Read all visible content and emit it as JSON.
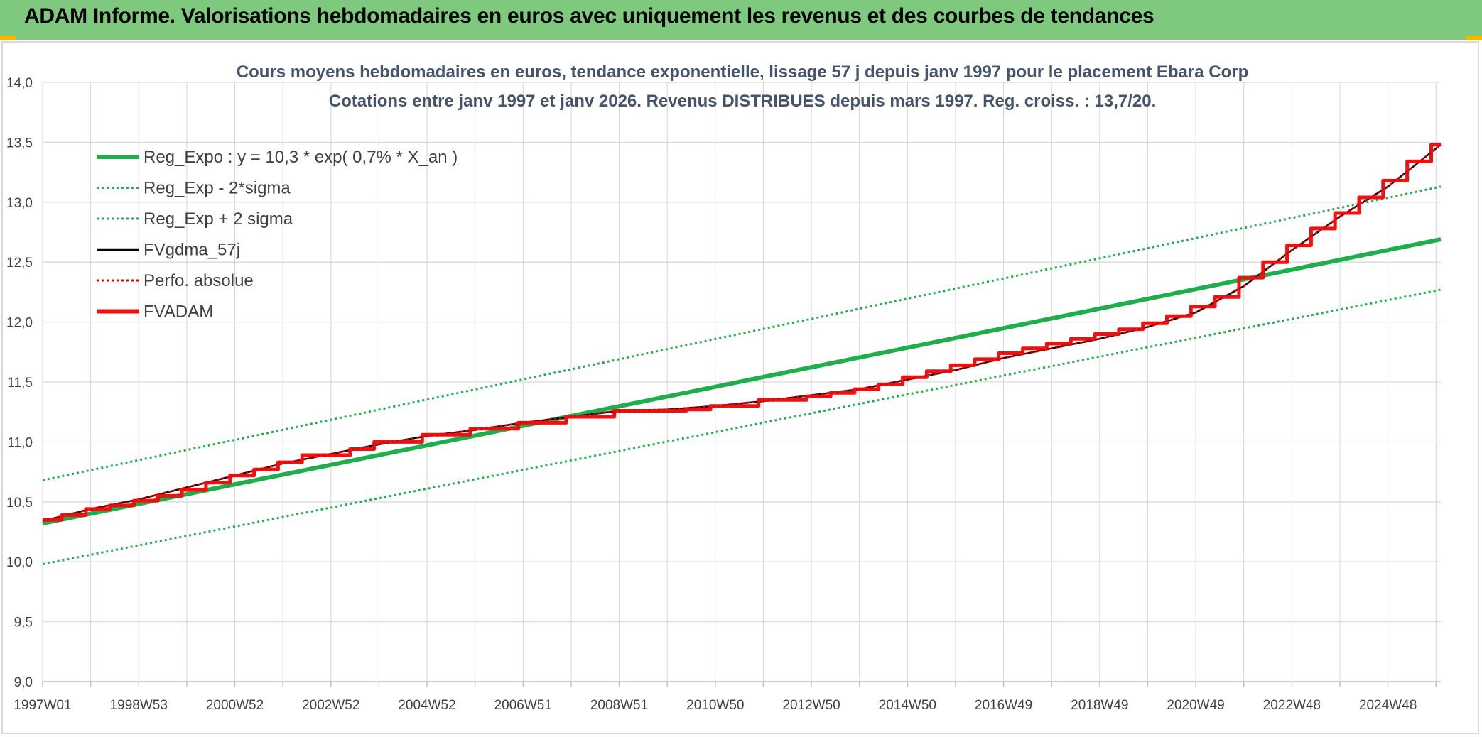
{
  "banner": {
    "title": "ADAM Informe. Valorisations hebdomadaires en euros avec uniquement les revenus et des courbes de tendances"
  },
  "colors": {
    "banner_bg": "#7fc97f",
    "banner_accent": "#f2b705",
    "reg_expo": "#1fae4b",
    "fvgdma": "#000000",
    "perfo": "#e00000",
    "fvadam": "#ee1111",
    "grid": "#d9d9d9",
    "title_text": "#44546a"
  },
  "chart_data": {
    "type": "line",
    "title": "Cours moyens hebdomadaires en euros, tendance exponentielle, lissage 57 j depuis janv 1997 pour le placement Ebara Corp",
    "subtitle": "Cotations entre janv 1997 et janv 2026. Revenus DISTRIBUES depuis mars 1997. Reg. croiss. : 13,7/20.",
    "xlabel": "",
    "ylabel": "",
    "ylim": [
      9.0,
      14.0
    ],
    "xlim": [
      1997.0,
      2026.1
    ],
    "grid": true,
    "legend_position": "top-left",
    "y_ticks": [
      "9,0",
      "9,5",
      "10,0",
      "10,5",
      "11,0",
      "11,5",
      "12,0",
      "12,5",
      "13,0",
      "13,5",
      "14,0"
    ],
    "y_tick_values": [
      9.0,
      9.5,
      10.0,
      10.5,
      11.0,
      11.5,
      12.0,
      12.5,
      13.0,
      13.5,
      14.0
    ],
    "x_tick_labels": [
      "1997W01",
      "1998W53",
      "2000W52",
      "2002W52",
      "2004W52",
      "2006W51",
      "2008W51",
      "2010W50",
      "2012W50",
      "2014W50",
      "2016W49",
      "2018W49",
      "2020W49",
      "2022W48",
      "2024W48"
    ],
    "x_tick_values": [
      1997.0,
      1999.0,
      2001.0,
      2003.0,
      2005.0,
      2007.0,
      2009.0,
      2011.0,
      2013.0,
      2015.0,
      2017.0,
      2019.0,
      2021.0,
      2023.0,
      2025.0
    ],
    "series": [
      {
        "name": "Reg_Expo : y = 10,3 * exp( 0,7% *  X_an )",
        "style": "solid-thick",
        "color": "#1fae4b",
        "x": [
          1997.0,
          2026.1
        ],
        "values": [
          10.32,
          12.69
        ]
      },
      {
        "name": "Reg_Exp - 2*sigma",
        "style": "dotted",
        "color": "#1fae4b",
        "x": [
          1997.0,
          2026.1
        ],
        "values": [
          9.98,
          12.27
        ]
      },
      {
        "name": "Reg_Exp + 2 sigma",
        "style": "dotted",
        "color": "#1fae4b",
        "x": [
          1997.0,
          2026.1
        ],
        "values": [
          10.68,
          13.13
        ]
      },
      {
        "name": "FVgdma_57j",
        "style": "solid-thin",
        "color": "#000000",
        "x": [
          1997.0,
          1998.0,
          1999.0,
          2000.0,
          2001.0,
          2002.0,
          2003.0,
          2004.0,
          2005.0,
          2006.0,
          2007.0,
          2008.0,
          2009.0,
          2010.0,
          2011.0,
          2012.0,
          2013.0,
          2014.0,
          2015.0,
          2016.0,
          2017.0,
          2018.0,
          2019.0,
          2020.0,
          2021.0,
          2022.0,
          2023.0,
          2024.0,
          2025.0,
          2026.1
        ],
        "values": [
          10.34,
          10.44,
          10.52,
          10.62,
          10.72,
          10.82,
          10.9,
          10.98,
          11.05,
          11.1,
          11.16,
          11.21,
          11.26,
          11.27,
          11.3,
          11.34,
          11.39,
          11.44,
          11.52,
          11.6,
          11.7,
          11.78,
          11.86,
          11.96,
          12.08,
          12.3,
          12.6,
          12.88,
          13.13,
          13.48
        ]
      },
      {
        "name": "Perfo. absolue",
        "style": "dotted",
        "color": "#e00000",
        "x": [
          1997.0,
          1998.0,
          1999.0,
          2000.0,
          2001.0,
          2002.0,
          2003.0,
          2004.0,
          2005.0,
          2006.0,
          2007.0,
          2008.0,
          2009.0,
          2010.0,
          2011.0,
          2012.0,
          2013.0,
          2014.0,
          2015.0,
          2016.0,
          2017.0,
          2018.0,
          2019.0,
          2020.0,
          2021.0,
          2022.0,
          2023.0,
          2024.0,
          2025.0,
          2026.1
        ],
        "values": [
          10.34,
          10.44,
          10.52,
          10.62,
          10.72,
          10.82,
          10.9,
          10.98,
          11.05,
          11.1,
          11.16,
          11.21,
          11.26,
          11.27,
          11.3,
          11.34,
          11.39,
          11.44,
          11.52,
          11.6,
          11.7,
          11.78,
          11.86,
          11.96,
          12.08,
          12.3,
          12.6,
          12.88,
          13.13,
          13.48
        ]
      },
      {
        "name": "FVADAM",
        "style": "step-thick",
        "color": "#ee1111",
        "x": [
          1997.0,
          1997.4,
          1997.9,
          1998.4,
          1998.9,
          1999.4,
          1999.9,
          2000.4,
          2000.9,
          2001.4,
          2001.9,
          2002.4,
          2003.4,
          2003.9,
          2004.9,
          2005.9,
          2006.9,
          2007.9,
          2008.9,
          2010.4,
          2010.9,
          2011.9,
          2012.9,
          2013.4,
          2013.9,
          2014.4,
          2014.9,
          2015.4,
          2015.9,
          2016.4,
          2016.9,
          2017.4,
          2017.9,
          2018.4,
          2018.9,
          2019.4,
          2019.9,
          2020.4,
          2020.9,
          2021.4,
          2021.9,
          2022.4,
          2022.9,
          2023.4,
          2023.9,
          2024.4,
          2024.9,
          2025.4,
          2025.9,
          2026.1
        ],
        "values": [
          10.35,
          10.39,
          10.44,
          10.47,
          10.51,
          10.55,
          10.6,
          10.66,
          10.72,
          10.77,
          10.83,
          10.89,
          10.94,
          11.0,
          11.06,
          11.11,
          11.16,
          11.21,
          11.26,
          11.27,
          11.3,
          11.35,
          11.38,
          11.41,
          11.44,
          11.48,
          11.54,
          11.59,
          11.64,
          11.69,
          11.74,
          11.78,
          11.82,
          11.86,
          11.9,
          11.94,
          11.99,
          12.05,
          12.13,
          12.21,
          12.37,
          12.5,
          12.64,
          12.78,
          12.91,
          13.04,
          13.18,
          13.34,
          13.48,
          13.48
        ]
      }
    ]
  }
}
